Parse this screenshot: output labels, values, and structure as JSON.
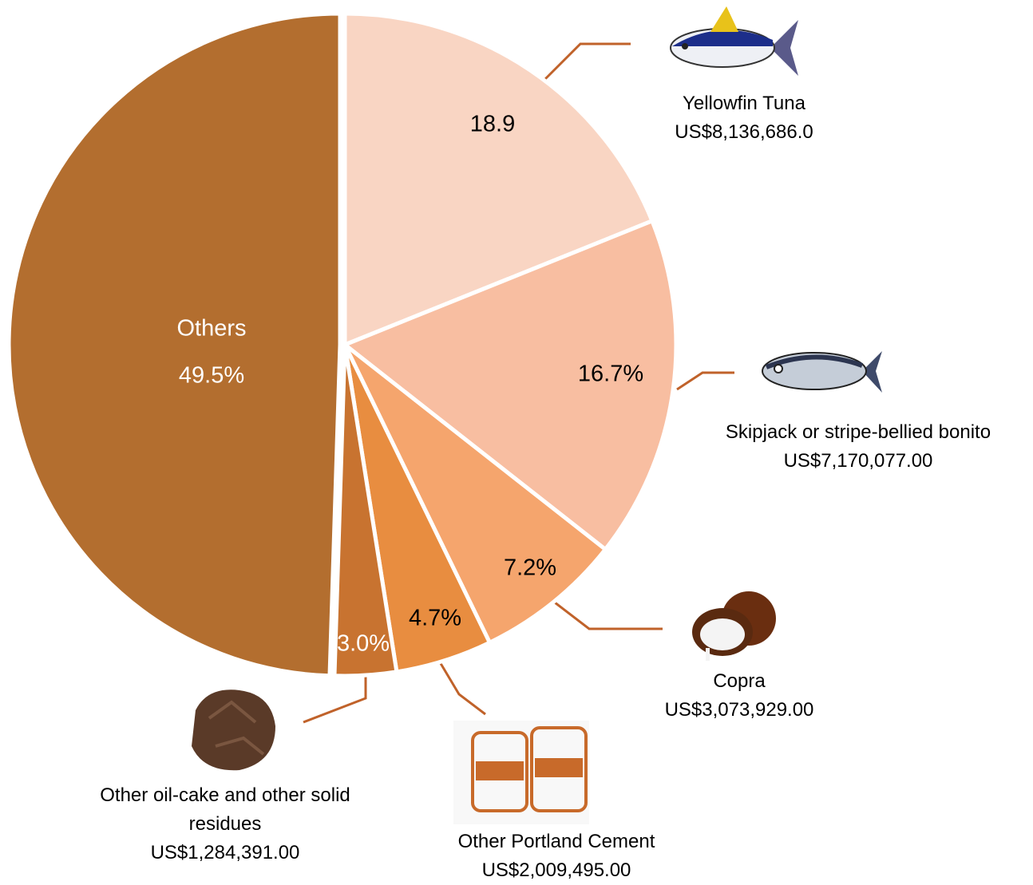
{
  "chart_data": {
    "type": "pie",
    "categories": [
      "Yellowfin Tuna",
      "Skipjack or stripe-bellied bonito",
      "Copra",
      "Other Portland Cement",
      "Other oil-cake and other solid residues",
      "Others"
    ],
    "values": [
      18.9,
      16.7,
      7.2,
      4.7,
      3.0,
      49.5
    ],
    "value_labels": [
      "18.9",
      "16.7%",
      "7.2%",
      "4.7%",
      "3.0%",
      "49.5%"
    ],
    "amounts": [
      "US$8,136,686.0",
      "US$7,170,077.00",
      "US$3,073,929.00",
      "US$2,009,495.00",
      "US$1,284,391.00",
      null
    ],
    "colors": [
      "#f9d5c3",
      "#f8bea1",
      "#f5a56d",
      "#e88d40",
      "#c87330",
      "#b36e2f"
    ]
  }
}
